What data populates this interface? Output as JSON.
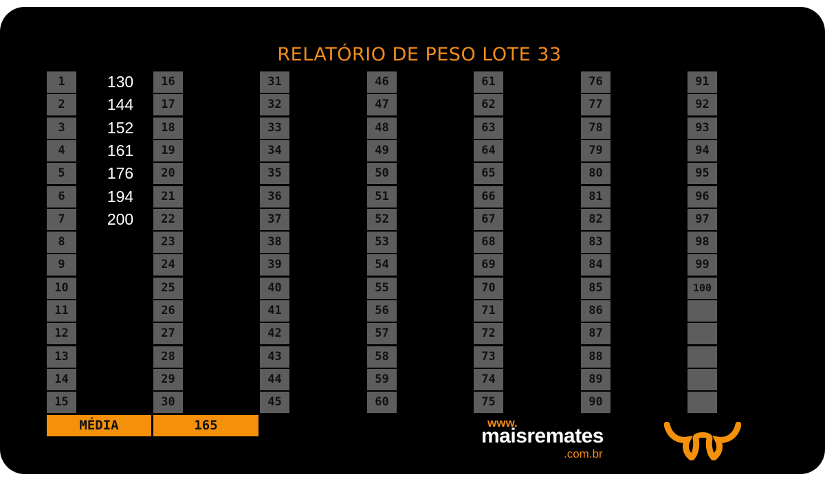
{
  "title": "RELATÓRIO DE PESO LOTE 33",
  "numbers": [
    "1",
    "2",
    "3",
    "4",
    "5",
    "6",
    "7",
    "8",
    "9",
    "10",
    "11",
    "12",
    "13",
    "14",
    "15",
    "16",
    "17",
    "18",
    "19",
    "20",
    "21",
    "22",
    "23",
    "24",
    "25",
    "26",
    "27",
    "28",
    "29",
    "30",
    "31",
    "32",
    "33",
    "34",
    "35",
    "36",
    "37",
    "38",
    "39",
    "40",
    "41",
    "42",
    "43",
    "44",
    "45",
    "46",
    "47",
    "48",
    "49",
    "50",
    "51",
    "52",
    "53",
    "54",
    "55",
    "56",
    "57",
    "58",
    "59",
    "60",
    "61",
    "62",
    "63",
    "64",
    "65",
    "66",
    "67",
    "68",
    "69",
    "70",
    "71",
    "72",
    "73",
    "74",
    "75",
    "76",
    "77",
    "78",
    "79",
    "80",
    "81",
    "82",
    "83",
    "84",
    "85",
    "86",
    "87",
    "88",
    "89",
    "90",
    "91",
    "92",
    "93",
    "94",
    "95",
    "96",
    "97",
    "98",
    "99",
    "100"
  ],
  "weights": [
    "130",
    "144",
    "152",
    "161",
    "176",
    "194",
    "200"
  ],
  "average": {
    "label": "MÉDIA",
    "value": "165"
  },
  "footer": {
    "www": "www.",
    "brand": "maisremates",
    "domain": ".com.br"
  },
  "colors": {
    "accent": "#f28c1c",
    "cell": "#5d5d5d",
    "background": "#000000"
  },
  "logo_icon": "bull-head-icon"
}
